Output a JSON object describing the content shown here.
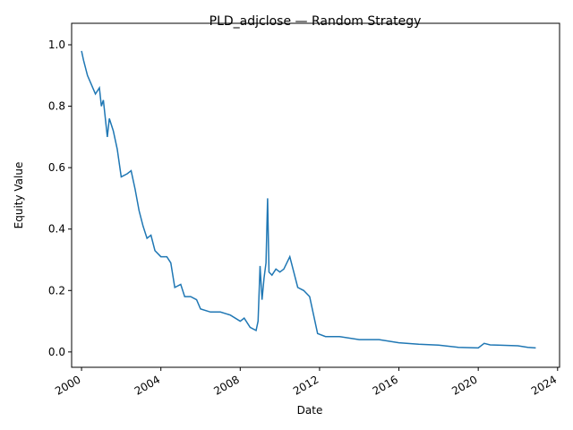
{
  "chart_data": {
    "type": "line",
    "title": "PLD_adjclose — Random Strategy",
    "xlabel": "Date",
    "ylabel": "Equity Value",
    "x": [
      2000.0,
      2000.1,
      2000.3,
      2000.5,
      2000.7,
      2000.9,
      2001.0,
      2001.1,
      2001.3,
      2001.4,
      2001.6,
      2001.8,
      2002.0,
      2002.3,
      2002.5,
      2002.7,
      2002.9,
      2003.1,
      2003.3,
      2003.5,
      2003.7,
      2004.0,
      2004.3,
      2004.5,
      2004.7,
      2005.0,
      2005.2,
      2005.5,
      2005.8,
      2006.0,
      2006.5,
      2007.0,
      2007.5,
      2008.0,
      2008.2,
      2008.5,
      2008.8,
      2008.9,
      2009.0,
      2009.1,
      2009.2,
      2009.3,
      2009.38,
      2009.45,
      2009.6,
      2009.8,
      2010.0,
      2010.2,
      2010.5,
      2010.7,
      2010.9,
      2011.2,
      2011.5,
      2011.7,
      2011.9,
      2012.3,
      2013.0,
      2014.0,
      2015.0,
      2016.0,
      2017.0,
      2018.0,
      2019.0,
      2020.0,
      2020.3,
      2020.6,
      2021.0,
      2022.0,
      2022.5,
      2022.9
    ],
    "series": [
      {
        "name": "Equity",
        "color": "#1f77b4",
        "values": [
          0.98,
          0.95,
          0.9,
          0.87,
          0.84,
          0.86,
          0.8,
          0.82,
          0.7,
          0.76,
          0.72,
          0.66,
          0.57,
          0.58,
          0.59,
          0.53,
          0.46,
          0.41,
          0.37,
          0.38,
          0.33,
          0.31,
          0.31,
          0.29,
          0.21,
          0.22,
          0.18,
          0.18,
          0.17,
          0.14,
          0.13,
          0.13,
          0.12,
          0.1,
          0.11,
          0.08,
          0.07,
          0.1,
          0.28,
          0.17,
          0.24,
          0.29,
          0.5,
          0.26,
          0.25,
          0.27,
          0.26,
          0.27,
          0.31,
          0.26,
          0.21,
          0.2,
          0.18,
          0.12,
          0.06,
          0.05,
          0.05,
          0.04,
          0.04,
          0.03,
          0.025,
          0.022,
          0.015,
          0.013,
          0.028,
          0.023,
          0.022,
          0.02,
          0.015,
          0.013
        ]
      }
    ],
    "xlim": [
      1999.5,
      2024.1
    ],
    "xticks": [
      2000,
      2004,
      2008,
      2012,
      2016,
      2020,
      2024
    ],
    "ylim": [
      -0.05,
      1.07
    ],
    "yticks": [
      {
        "value": 0,
        "label": "0.0"
      },
      {
        "value": 0.2,
        "label": "0.2"
      },
      {
        "value": 0.4,
        "label": "0.4"
      },
      {
        "value": 0.6,
        "label": "0.6"
      },
      {
        "value": 0.8,
        "label": "0.8"
      },
      {
        "value": 1.0,
        "label": "1.0"
      }
    ]
  }
}
